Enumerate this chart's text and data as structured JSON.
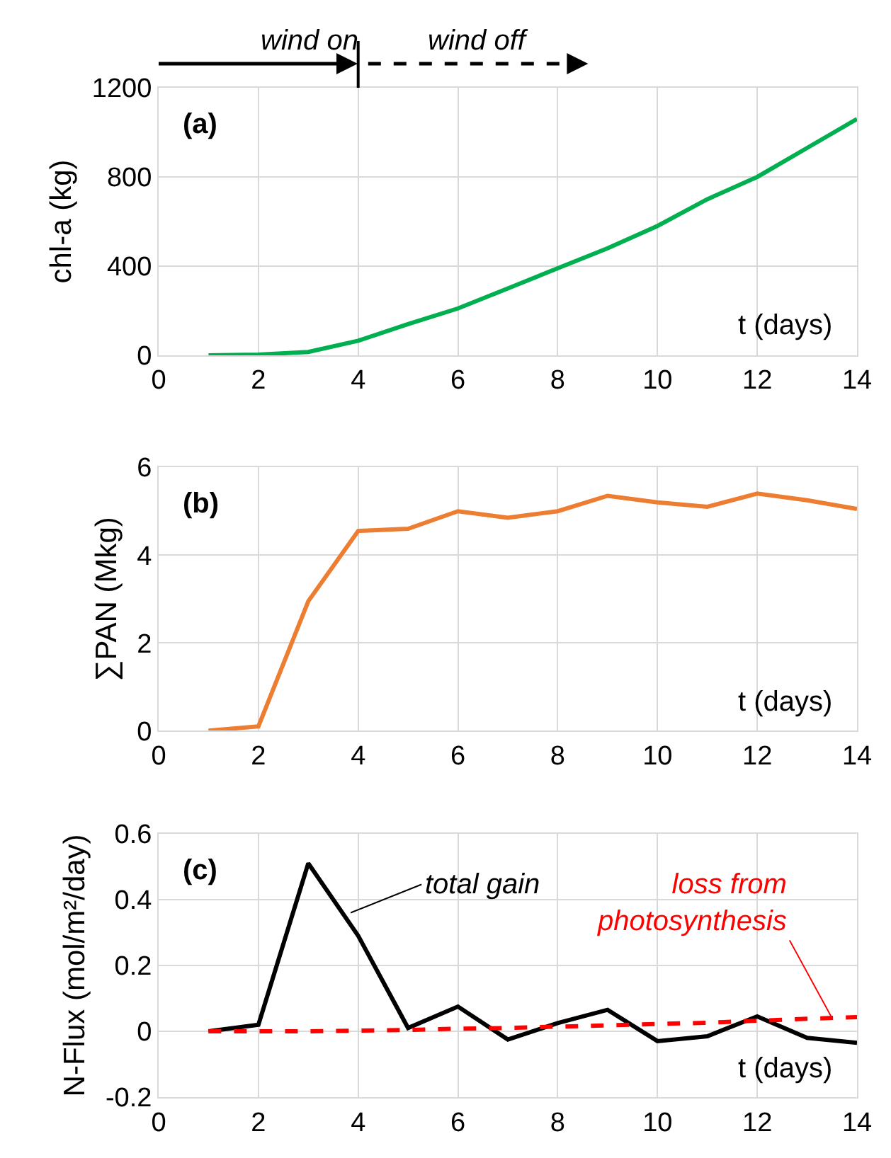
{
  "chart_data": [
    {
      "type": "line",
      "ylabel": "chl-a (kg)",
      "x": [
        1,
        2,
        3,
        4,
        5,
        6,
        7,
        8,
        9,
        10,
        11,
        12,
        13,
        14
      ],
      "series": [
        {
          "color": "#00b050",
          "values": [
            0,
            3,
            15,
            65,
            140,
            210,
            300,
            390,
            480,
            580,
            700,
            800,
            930,
            1060
          ]
        }
      ],
      "xlim": [
        0,
        14
      ],
      "xticks": [
        0,
        2,
        4,
        6,
        8,
        10,
        12,
        14
      ],
      "ylim": [
        0,
        1200
      ],
      "yticks": [
        0,
        400,
        800,
        1200
      ],
      "grid": true,
      "annotations": [
        "(a)",
        "t (days)",
        "wind on",
        "wind off"
      ]
    },
    {
      "type": "line",
      "ylabel": "∑PAN (Mkg)",
      "x": [
        1,
        2,
        3,
        4,
        5,
        6,
        7,
        8,
        9,
        10,
        11,
        12,
        13,
        14
      ],
      "series": [
        {
          "color": "#ed7d31",
          "values": [
            0,
            0.1,
            2.95,
            4.55,
            4.6,
            5.0,
            4.85,
            5.0,
            5.35,
            5.2,
            5.1,
            5.4,
            5.25,
            5.05
          ]
        }
      ],
      "xlim": [
        0,
        14
      ],
      "xticks": [
        0,
        2,
        4,
        6,
        8,
        10,
        12,
        14
      ],
      "ylim": [
        0,
        6
      ],
      "yticks": [
        0,
        2,
        4,
        6
      ],
      "grid": true,
      "annotations": [
        "(b)",
        "t (days)"
      ]
    },
    {
      "type": "line",
      "ylabel": "N-Flux (mol/m²/day)",
      "x": [
        1,
        2,
        3,
        4,
        5,
        6,
        7,
        8,
        9,
        10,
        11,
        12,
        13,
        14
      ],
      "series": [
        {
          "color": "#000000",
          "line_style": "solid",
          "values": [
            0,
            0.02,
            0.51,
            0.29,
            0.01,
            0.075,
            -0.025,
            0.025,
            0.065,
            -0.03,
            -0.015,
            0.045,
            -0.02,
            -0.035
          ]
        },
        {
          "color": "#ff0000",
          "line_style": "dashed",
          "values": [
            0,
            0,
            0,
            0.002,
            0.004,
            0.008,
            0.01,
            0.014,
            0.018,
            0.022,
            0.026,
            0.032,
            0.038,
            0.043
          ]
        }
      ],
      "xlim": [
        0,
        14
      ],
      "xticks": [
        0,
        2,
        4,
        6,
        8,
        10,
        12,
        14
      ],
      "ylim": [
        -0.2,
        0.6
      ],
      "yticks": [
        -0.2,
        0,
        0.2,
        0.4,
        0.6
      ],
      "grid": true,
      "annotations": [
        "(c)",
        "t (days)",
        {
          "text": "total gain",
          "x": 3.85,
          "y": 0.36
        },
        {
          "text": "loss from\nphotosynthesis",
          "x": 13.5,
          "y": 0.04
        }
      ]
    }
  ]
}
